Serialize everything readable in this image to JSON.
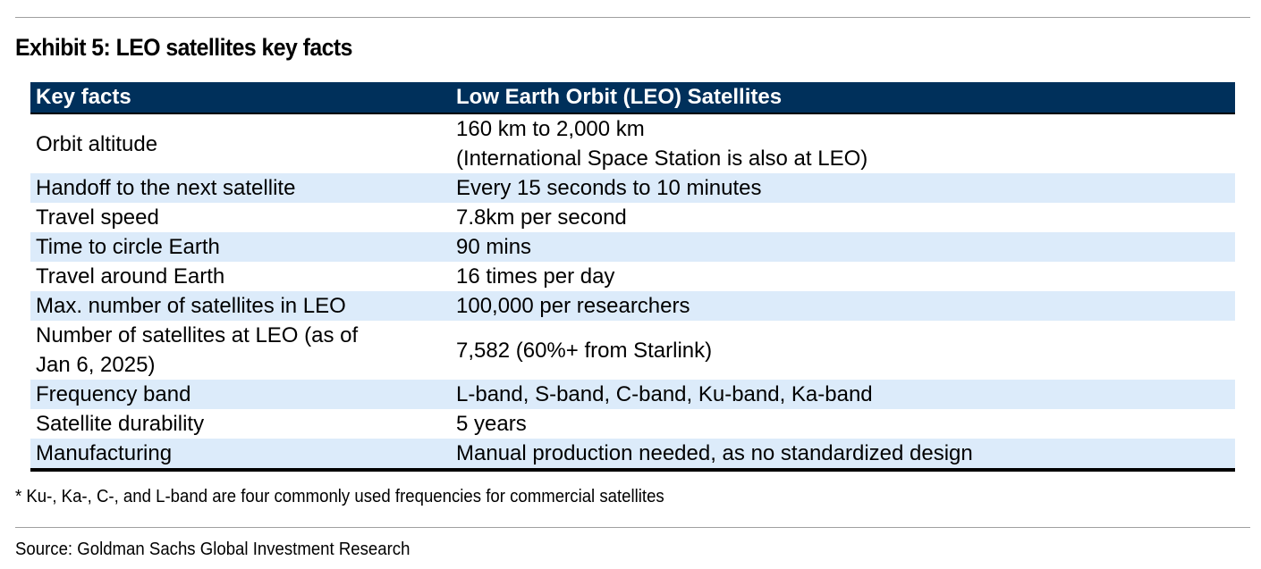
{
  "exhibit": {
    "title": "Exhibit 5: LEO satellites key facts"
  },
  "table": {
    "headers": [
      "Key facts",
      "Low Earth Orbit (LEO) Satellites"
    ],
    "rows": [
      {
        "fact": "Orbit altitude",
        "value_line1": "160 km to 2,000 km",
        "value_line2": "(International Space Station is also at LEO)"
      },
      {
        "fact": "Handoff to the next satellite",
        "value": "Every 15 seconds to 10 minutes"
      },
      {
        "fact": "Travel speed",
        "value": "7.8km per second"
      },
      {
        "fact": "Time to circle Earth",
        "value": "90 mins"
      },
      {
        "fact": "Travel around Earth",
        "value": "16 times per day"
      },
      {
        "fact": "Max. number of satellites in LEO",
        "value": "100,000 per researchers"
      },
      {
        "fact_line1": "Number of satellites at LEO (as of",
        "fact_line2": "Jan 6, 2025)",
        "value": "7,582 (60%+ from Starlink)"
      },
      {
        "fact": "Frequency band",
        "value": "L-band, S-band, C-band, Ku-band, Ka-band"
      },
      {
        "fact": "Satellite durability",
        "value": "5 years"
      },
      {
        "fact": "Manufacturing",
        "value": "Manual production needed, as no standardized design"
      }
    ]
  },
  "footnote": "* Ku-, Ka-, C-, and L-band are four commonly used frequencies for commercial satellites",
  "source": "Source: Goldman Sachs Global Investment Research"
}
